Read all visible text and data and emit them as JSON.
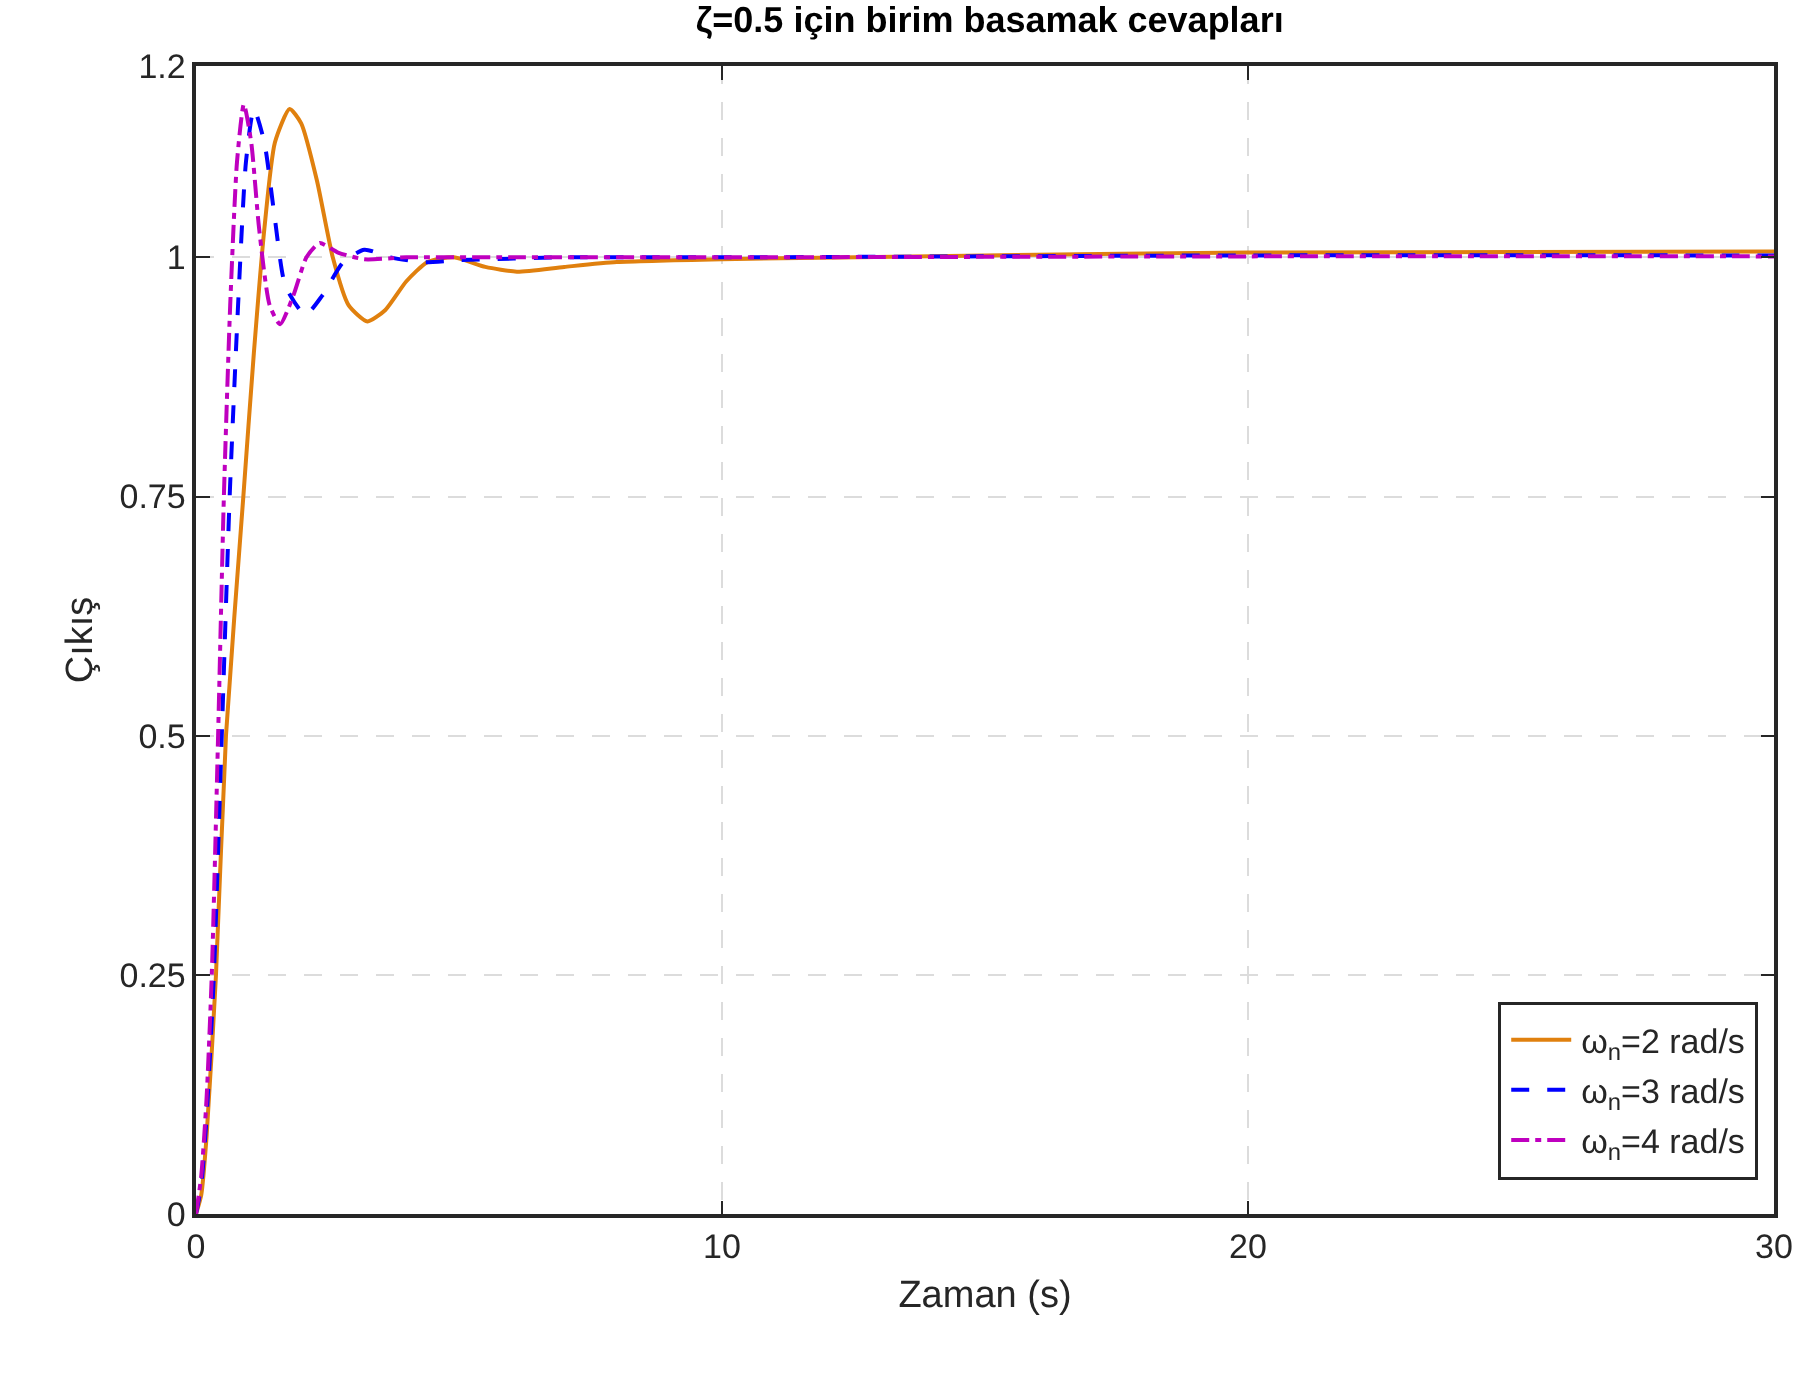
{
  "chart_data": {
    "type": "line",
    "title": "ζ=0.5 için birim basamak cevapları",
    "xlabel": "Zaman (s)",
    "ylabel": "Çıkış",
    "xlim": [
      0,
      30
    ],
    "xticks": [
      0,
      10,
      20,
      30
    ],
    "ylim": [
      0,
      1.2
    ],
    "yticks": [
      0,
      0.25,
      0.5,
      0.75,
      1,
      1.2
    ],
    "grid": true,
    "legend": "bottom right",
    "marker": "none",
    "series": [
      {
        "name": "ω$_{n}$=2 rad/s",
        "color": "#e0800e",
        "line_style": "solid",
        "x": [
          0,
          0.1,
          0.2,
          0.38,
          0.57,
          0.9,
          1.1,
          1.3,
          1.5,
          1.78,
          2.0,
          2.3,
          2.6,
          2.9,
          3.26,
          3.6,
          4.0,
          4.4,
          4.9,
          5.5,
          6.1,
          7,
          8,
          10,
          15,
          20,
          30
        ],
        "values": [
          0,
          0.02,
          0.08,
          0.25,
          0.5,
          0.75,
          0.9,
          1.03,
          1.12,
          1.155,
          1.14,
          1.08,
          1.0,
          0.95,
          0.933,
          0.945,
          0.975,
          0.995,
          1.0,
          0.99,
          0.985,
          0.99,
          0.995,
          0.998,
          1.002,
          1.005,
          1.006
        ]
      },
      {
        "name": "ω$_{n}$=3 rad/s",
        "color": "#0000ff",
        "line_style": "dashed",
        "x": [
          0,
          0.1,
          0.2,
          0.34,
          0.49,
          0.64,
          0.8,
          0.95,
          1.1,
          1.3,
          1.5,
          1.7,
          2.08,
          2.4,
          2.8,
          3.2,
          3.7,
          4.3,
          5,
          7,
          10,
          20,
          30
        ],
        "values": [
          0,
          0.03,
          0.1,
          0.25,
          0.5,
          0.75,
          0.95,
          1.1,
          1.155,
          1.12,
          1.04,
          0.97,
          0.94,
          0.96,
          0.995,
          1.008,
          1.0,
          0.995,
          0.997,
          1.0,
          1.0,
          1.002,
          1.002
        ]
      },
      {
        "name": "ω$_{n}$=4 rad/s",
        "color": "#bf00bf",
        "line_style": "dashdot",
        "x": [
          0,
          0.1,
          0.2,
          0.3,
          0.42,
          0.53,
          0.65,
          0.78,
          0.91,
          1.05,
          1.2,
          1.4,
          1.6,
          1.85,
          2.1,
          2.35,
          2.7,
          3.2,
          4,
          6,
          10,
          20,
          30
        ],
        "values": [
          0,
          0.04,
          0.12,
          0.25,
          0.5,
          0.75,
          0.95,
          1.1,
          1.16,
          1.12,
          1.03,
          0.95,
          0.93,
          0.96,
          1.0,
          1.015,
          1.005,
          0.998,
          1.0,
          1.0,
          1.0,
          1.001,
          1.001
        ]
      }
    ]
  }
}
